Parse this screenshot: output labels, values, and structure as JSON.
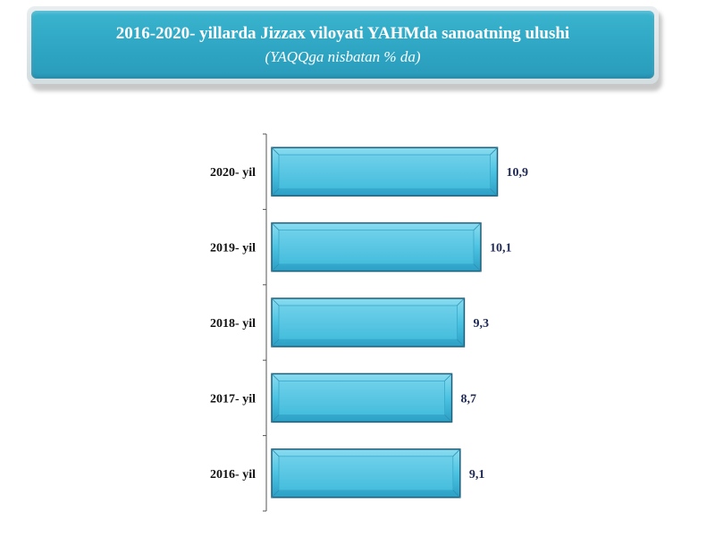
{
  "title": "2016-2020- yillarda Jizzax viloyati YAHMda sanoatning ulushi",
  "subtitle": "(YAQQga nisbatan % da)",
  "colors": {
    "bar_top": "#7fd7ee",
    "bar_mid": "#44bfe0",
    "bar_bottom": "#2a9fc4",
    "bar_border": "#1f5e78",
    "banner": "#2ea6c4"
  },
  "chart_data": {
    "type": "bar",
    "orientation": "horizontal",
    "categories": [
      "2020- yil",
      "2019- yil",
      "2018- yil",
      "2017- yil",
      "2016- yil"
    ],
    "values": [
      10.9,
      10.1,
      9.3,
      8.7,
      9.1
    ],
    "value_labels": [
      "10,9",
      "10,1",
      "9,3",
      "8,7",
      "9,1"
    ],
    "title": "2016-2020- yillarda Jizzax viloyati YAHMda sanoatning ulushi",
    "subtitle": "(YAQQga nisbatan % da)",
    "xlim": [
      0,
      12
    ],
    "grid": false,
    "legend": "none"
  }
}
